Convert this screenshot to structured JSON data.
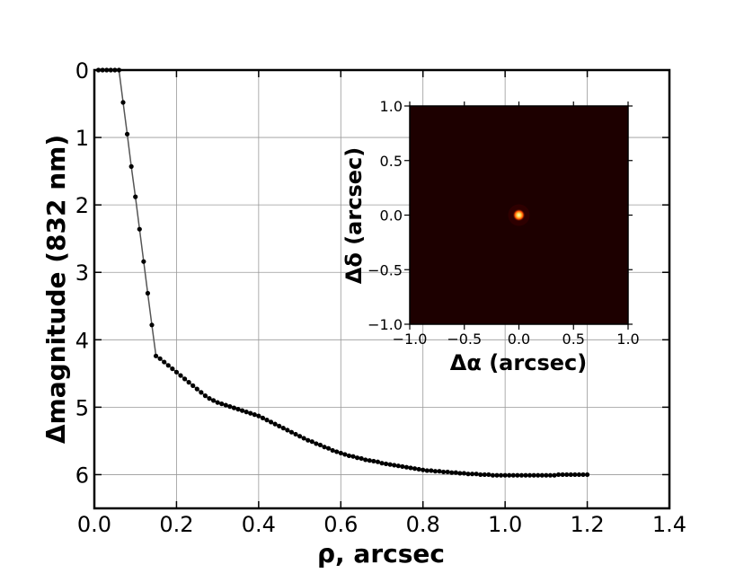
{
  "chart_data": [
    {
      "type": "line",
      "xlabel": "ρ, arcsec",
      "ylabel": "Δmagnitude (832 nm)",
      "xlim": [
        0.0,
        1.4
      ],
      "ylim": [
        6.5,
        0.0
      ],
      "y_inverted": true,
      "grid": true,
      "xticks": [
        "0.0",
        "0.2",
        "0.4",
        "0.6",
        "0.8",
        "1.0",
        "1.2",
        "1.4"
      ],
      "yticks": [
        "0",
        "1",
        "2",
        "3",
        "4",
        "5",
        "6"
      ],
      "marker": "dot",
      "line_color": "#555555",
      "marker_color": "#000000",
      "series": [
        {
          "x": [
            0.01,
            0.02,
            0.03,
            0.04,
            0.05,
            0.06,
            0.07,
            0.08,
            0.09,
            0.1,
            0.11,
            0.12,
            0.13,
            0.14,
            0.15,
            0.16,
            0.17,
            0.18,
            0.19,
            0.2,
            0.21,
            0.22,
            0.23,
            0.24,
            0.25,
            0.26,
            0.27,
            0.28,
            0.29,
            0.3,
            0.31,
            0.32,
            0.33,
            0.34,
            0.35,
            0.36,
            0.37,
            0.38,
            0.39,
            0.4,
            0.41,
            0.42,
            0.43,
            0.44,
            0.45,
            0.46,
            0.47,
            0.48,
            0.49,
            0.5,
            0.51,
            0.52,
            0.53,
            0.54,
            0.55,
            0.56,
            0.57,
            0.58,
            0.59,
            0.6,
            0.61,
            0.62,
            0.63,
            0.64,
            0.65,
            0.66,
            0.67,
            0.68,
            0.69,
            0.7,
            0.71,
            0.72,
            0.73,
            0.74,
            0.75,
            0.76,
            0.77,
            0.78,
            0.79,
            0.8,
            0.81,
            0.82,
            0.83,
            0.84,
            0.85,
            0.86,
            0.87,
            0.88,
            0.89,
            0.9,
            0.91,
            0.92,
            0.93,
            0.94,
            0.95,
            0.96,
            0.97,
            0.98,
            0.99,
            1.0,
            1.01,
            1.02,
            1.03,
            1.04,
            1.05,
            1.06,
            1.07,
            1.08,
            1.09,
            1.1,
            1.11,
            1.12,
            1.13,
            1.14,
            1.15,
            1.16,
            1.17,
            1.18,
            1.19,
            1.2
          ],
          "y": [
            0.0,
            0.0,
            0.0,
            0.0,
            0.0,
            0.0,
            0.48,
            0.95,
            1.43,
            1.88,
            2.36,
            2.84,
            3.31,
            3.78,
            4.24,
            4.28,
            4.33,
            4.38,
            4.43,
            4.48,
            4.53,
            4.58,
            4.63,
            4.68,
            4.73,
            4.78,
            4.83,
            4.87,
            4.9,
            4.93,
            4.95,
            4.97,
            4.99,
            5.01,
            5.03,
            5.05,
            5.07,
            5.09,
            5.11,
            5.13,
            5.16,
            5.19,
            5.22,
            5.25,
            5.28,
            5.31,
            5.34,
            5.37,
            5.4,
            5.43,
            5.46,
            5.49,
            5.51,
            5.54,
            5.56,
            5.59,
            5.61,
            5.64,
            5.66,
            5.68,
            5.7,
            5.72,
            5.73,
            5.75,
            5.76,
            5.78,
            5.79,
            5.8,
            5.81,
            5.83,
            5.84,
            5.85,
            5.86,
            5.87,
            5.88,
            5.89,
            5.9,
            5.91,
            5.92,
            5.93,
            5.94,
            5.94,
            5.95,
            5.95,
            5.96,
            5.96,
            5.97,
            5.97,
            5.98,
            5.98,
            5.99,
            5.99,
            5.99,
            6.0,
            6.0,
            6.0,
            6.01,
            6.01,
            6.01,
            6.01,
            6.01,
            6.01,
            6.01,
            6.01,
            6.01,
            6.01,
            6.01,
            6.01,
            6.01,
            6.01,
            6.01,
            6.01,
            6.0,
            6.0,
            6.0,
            6.0,
            6.0,
            6.0,
            6.0,
            6.0
          ]
        }
      ]
    },
    {
      "type": "heatmap",
      "xlabel": "Δα (arcsec)",
      "ylabel": "Δδ (arcsec)",
      "xlim": [
        -1.0,
        1.0
      ],
      "ylim": [
        -1.0,
        1.0
      ],
      "xticks": [
        "−1.0",
        "−0.5",
        "0.0",
        "0.5",
        "1.0"
      ],
      "yticks": [
        "−1.0",
        "−0.5",
        "0.0",
        "0.5",
        "1.0"
      ],
      "background_color": "#1d0000",
      "source": {
        "x": 0.0,
        "y": 0.0,
        "core_color": "#ffffb0",
        "halo_color": "#ff4a00"
      }
    }
  ]
}
